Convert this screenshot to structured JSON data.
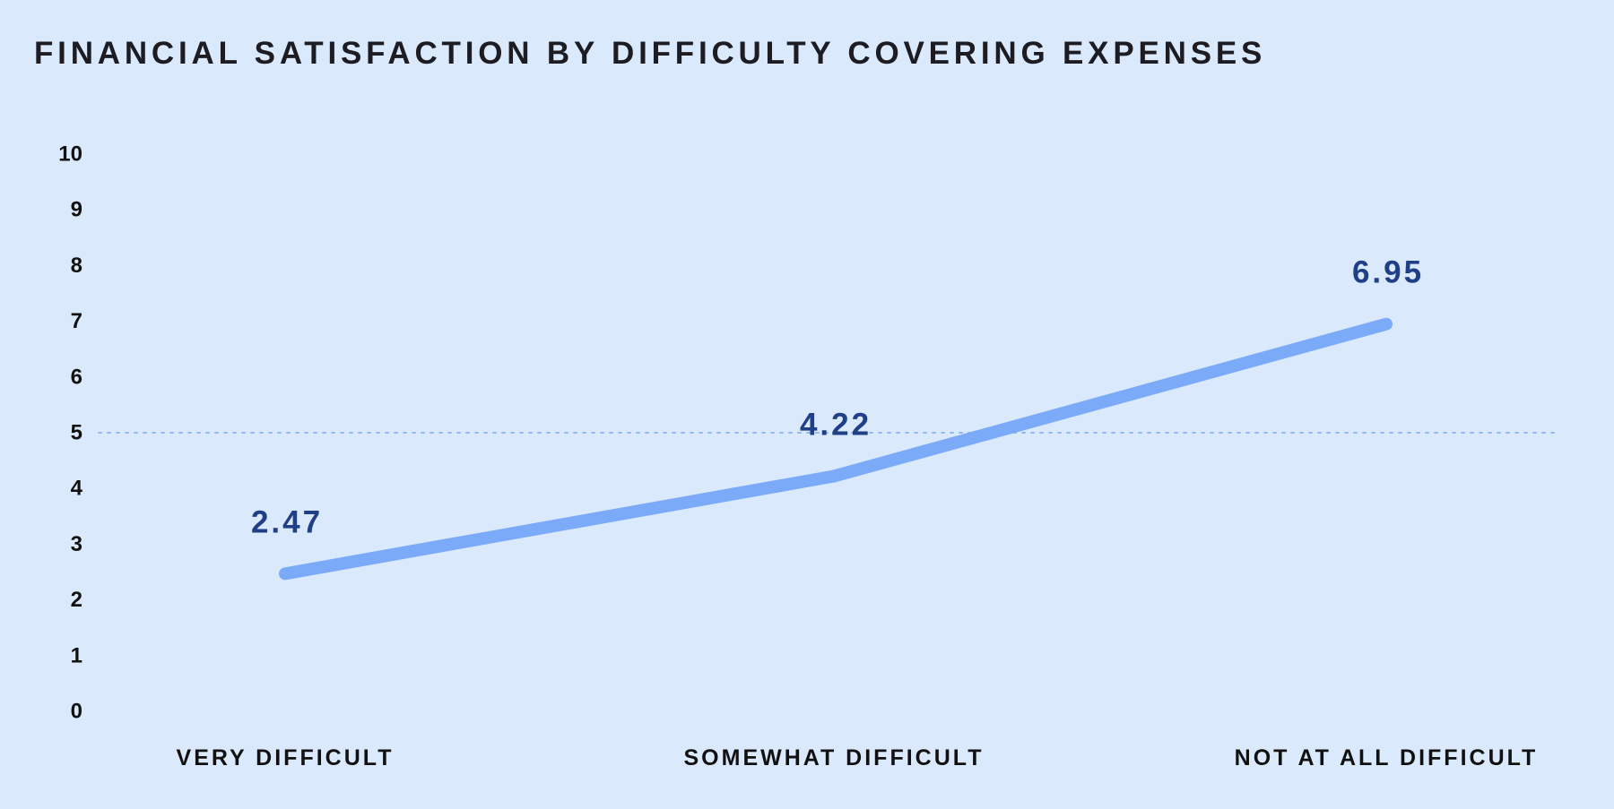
{
  "colors": {
    "background": "#dbe9fd",
    "line": "#7aaaf8",
    "reference_line": "#8fb8f4",
    "data_label": "#1f3f87",
    "text": "#111111"
  },
  "chart_data": {
    "type": "line",
    "title": "FINANCIAL SATISFACTION BY DIFFICULTY COVERING EXPENSES",
    "xlabel": "",
    "ylabel": "",
    "categories": [
      "VERY DIFFICULT",
      "SOMEWHAT DIFFICULT",
      "NOT AT ALL DIFFICULT"
    ],
    "series": [
      {
        "values": [
          2.47,
          4.22,
          6.95
        ],
        "labels": [
          "2.47",
          "4.22",
          "6.95"
        ]
      }
    ],
    "ylim": [
      0,
      10
    ],
    "yticks": [
      "0",
      "1",
      "2",
      "3",
      "4",
      "5",
      "6",
      "7",
      "8",
      "9",
      "10"
    ],
    "reference_line": {
      "value": 5,
      "style": "dotted"
    },
    "grid": false,
    "legend": "none"
  }
}
